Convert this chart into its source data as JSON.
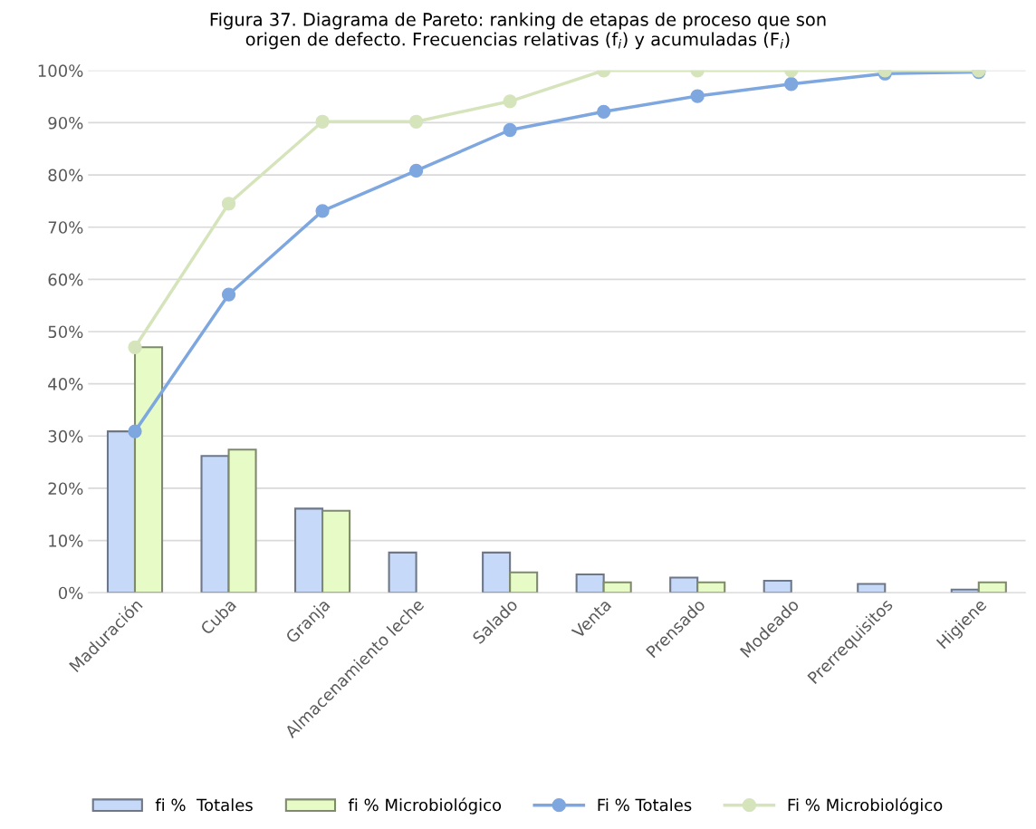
{
  "chart_data": {
    "type": "bar",
    "title": "Figura 37. Diagrama de Pareto: ranking de etapas de proceso que son\norigen de defecto. Frecuencias relativas (f$_{i}$) y acumuladas (F$_{i}$)",
    "categories": [
      "Maduración",
      "Cuba",
      "Granja",
      "Almacenamiento leche",
      "Salado",
      "Venta",
      "Prensado",
      "Modeado",
      "Prerrequisitos",
      "Higiene"
    ],
    "series": [
      {
        "name": "fi %  Totales",
        "color": "#c6d9f8",
        "values": [
          30.9,
          26.2,
          16.1,
          7.7,
          7.7,
          3.5,
          2.9,
          2.3,
          1.7,
          0.6
        ]
      },
      {
        "name": "fi % Microbiológico",
        "color": "#e6fbc6",
        "values": [
          47.0,
          27.4,
          15.7,
          null,
          3.9,
          2.0,
          2.0,
          null,
          null,
          2.0
        ]
      },
      {
        "name": "Fi % Totales",
        "type": "line",
        "color": "#7ea7e0",
        "values": [
          30.9,
          57.1,
          73.1,
          80.8,
          88.6,
          92.1,
          95.1,
          97.4,
          99.4,
          99.7
        ]
      },
      {
        "name": "Fi % Microbiológico",
        "type": "line",
        "color": "#d6e4bc",
        "values": [
          47.0,
          74.5,
          90.2,
          90.2,
          94.1,
          100,
          100,
          100,
          100,
          100
        ]
      }
    ],
    "ylim": [
      0,
      100
    ],
    "yticks": [
      {
        "value": 0,
        "label": "0%"
      },
      {
        "value": 10,
        "label": "10%"
      },
      {
        "value": 20,
        "label": "20%"
      },
      {
        "value": 30,
        "label": "30%"
      },
      {
        "value": 40,
        "label": "40%"
      },
      {
        "value": 50,
        "label": "50%"
      },
      {
        "value": 60,
        "label": "60%"
      },
      {
        "value": 70,
        "label": "70%"
      },
      {
        "value": 80,
        "label": "80%"
      },
      {
        "value": 90,
        "label": "90%"
      },
      {
        "value": 100,
        "label": "100%"
      }
    ],
    "grid": "y",
    "legend": "bottom",
    "marker": "circle"
  }
}
